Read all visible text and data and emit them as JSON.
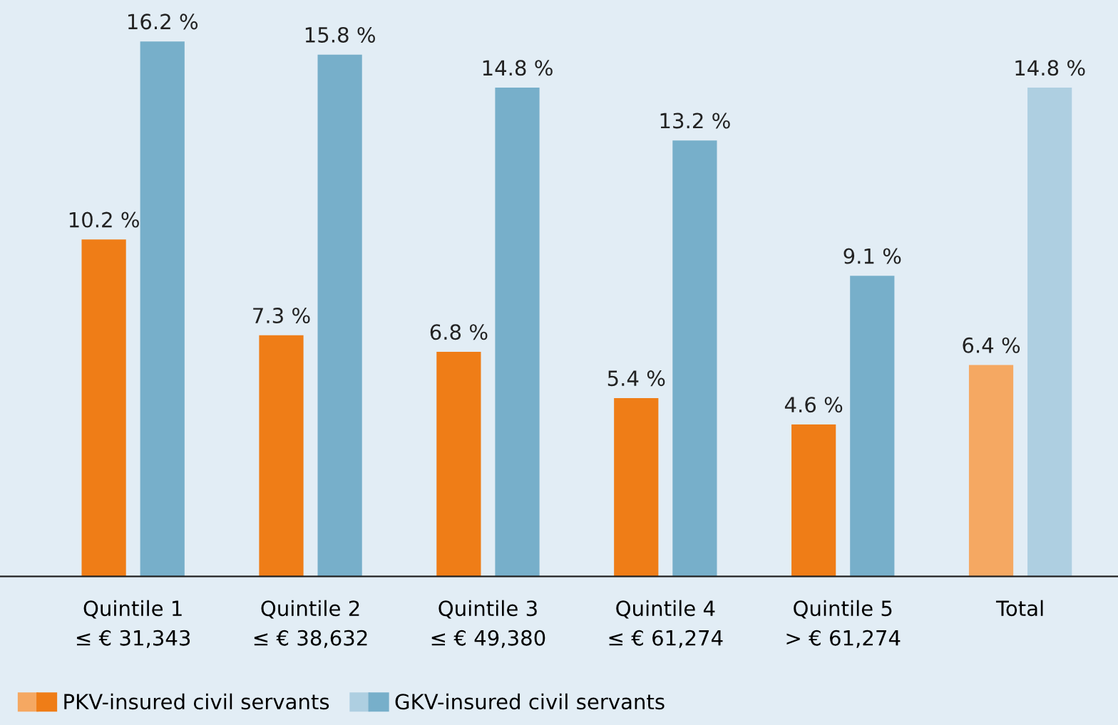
{
  "chart_data": {
    "type": "bar",
    "categories": [
      "Quintile 1\n≤ € 31,343",
      "Quintile 2\n≤ € 38,632",
      "Quintile 3\n≤ € 49,380",
      "Quintile 4\n≤ € 61,274",
      "Quintile 5\n> € 61,274",
      "Total"
    ],
    "series": [
      {
        "name": "PKV-insured civil servants",
        "colors": [
          "#ef7d17",
          "#ef7d17",
          "#ef7d17",
          "#ef7d17",
          "#ef7d17",
          "#f5a862"
        ],
        "values": [
          10.2,
          7.3,
          6.8,
          5.4,
          4.6,
          6.4
        ],
        "value_labels": [
          "10.2 %",
          "7.3 %",
          "6.8 %",
          "5.4 %",
          "4.6 %",
          "6.4 %"
        ]
      },
      {
        "name": "GKV-insured civil servants",
        "colors": [
          "#77afca",
          "#77afca",
          "#77afca",
          "#77afca",
          "#77afca",
          "#aecfe1"
        ],
        "values": [
          16.2,
          15.8,
          14.8,
          13.2,
          9.1,
          14.8
        ],
        "value_labels": [
          "16.2 %",
          "15.8 %",
          "14.8 %",
          "13.2 %",
          "9.1 %",
          "14.8 %"
        ]
      }
    ],
    "relative": false,
    "legend": "bottom left",
    "grid": false
  }
}
